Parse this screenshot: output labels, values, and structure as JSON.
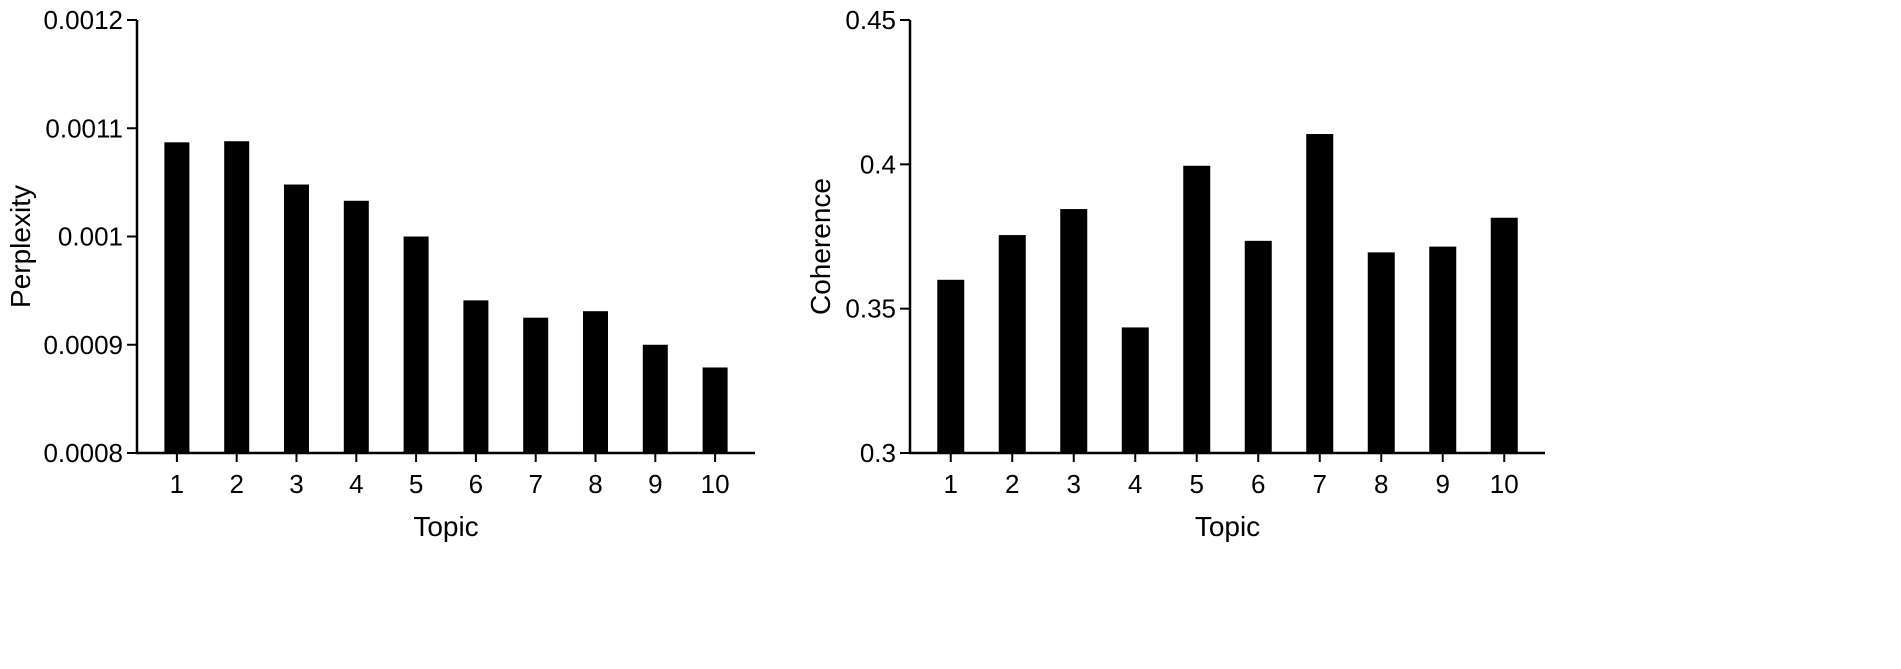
{
  "chart_data": [
    {
      "type": "bar",
      "xlabel": "Topic",
      "ylabel": "Perplexity",
      "categories": [
        "1",
        "2",
        "3",
        "4",
        "5",
        "6",
        "7",
        "8",
        "9",
        "10"
      ],
      "values": [
        0.001087,
        0.001088,
        0.001048,
        0.001033,
        0.001,
        0.000941,
        0.000925,
        0.000931,
        0.0009,
        0.000879
      ],
      "ylim": [
        0.0008,
        0.0012
      ],
      "yticks": [
        "0.0008",
        "0.0009",
        "0.001",
        "0.0011",
        "0.0012"
      ],
      "grid": false,
      "bar_color": "#000000"
    },
    {
      "type": "bar",
      "xlabel": "Topic",
      "ylabel": "Coherence",
      "categories": [
        "1",
        "2",
        "3",
        "4",
        "5",
        "6",
        "7",
        "8",
        "9",
        "10"
      ],
      "values": [
        0.36,
        0.3755,
        0.3845,
        0.3435,
        0.3995,
        0.3735,
        0.4105,
        0.3695,
        0.3715,
        0.3815
      ],
      "ylim": [
        0.3,
        0.45
      ],
      "yticks": [
        "0.3",
        "0.35",
        "0.4",
        "0.45"
      ],
      "grid": false,
      "bar_color": "#000000"
    }
  ]
}
